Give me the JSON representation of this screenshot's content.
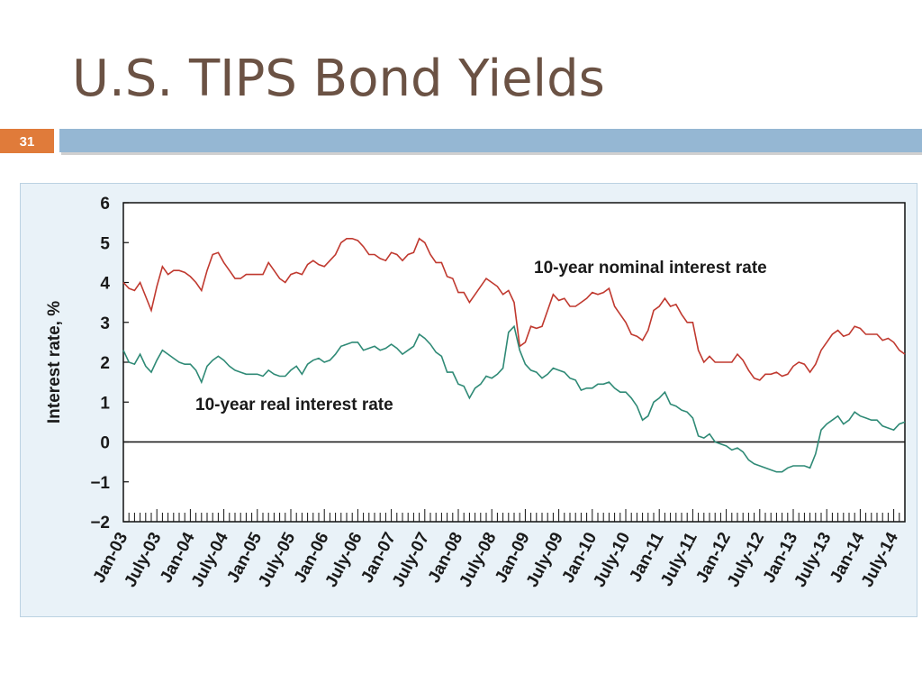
{
  "slide": {
    "title": "U.S. TIPS Bond Yields",
    "number": "31"
  },
  "chart_data": {
    "type": "line",
    "y_label": "Interest rate, %",
    "annotations": [
      "10-year nominal interest rate",
      "10-year real interest rate"
    ],
    "categories": [
      "Jan-03",
      null,
      null,
      null,
      null,
      null,
      "July-03",
      null,
      null,
      null,
      null,
      null,
      "Jan-04",
      null,
      null,
      null,
      null,
      null,
      "July-04",
      null,
      null,
      null,
      null,
      null,
      "Jan-05",
      null,
      null,
      null,
      null,
      null,
      "July-05",
      null,
      null,
      null,
      null,
      null,
      "Jan-06",
      null,
      null,
      null,
      null,
      null,
      "July-06",
      null,
      null,
      null,
      null,
      null,
      "Jan-07",
      null,
      null,
      null,
      null,
      null,
      "July-07",
      null,
      null,
      null,
      null,
      null,
      "Jan-08",
      null,
      null,
      null,
      null,
      null,
      "July-08",
      null,
      null,
      null,
      null,
      null,
      "Jan-09",
      null,
      null,
      null,
      null,
      null,
      "July-09",
      null,
      null,
      null,
      null,
      null,
      "Jan-10",
      null,
      null,
      null,
      null,
      null,
      "July-10",
      null,
      null,
      null,
      null,
      null,
      "Jan-11",
      null,
      null,
      null,
      null,
      null,
      "July-11",
      null,
      null,
      null,
      null,
      null,
      "Jan-12",
      null,
      null,
      null,
      null,
      null,
      "July-12",
      null,
      null,
      null,
      null,
      null,
      "Jan-13",
      null,
      null,
      null,
      null,
      null,
      "July-13",
      null,
      null,
      null,
      null,
      null,
      "Jan-14",
      null,
      null,
      null,
      null,
      null,
      "July-14",
      null,
      null
    ],
    "series": [
      {
        "color": "#c0392f",
        "values": [
          4.0,
          3.85,
          3.8,
          4.0,
          3.65,
          3.3,
          3.9,
          4.4,
          4.2,
          4.3,
          4.3,
          4.25,
          4.15,
          4.0,
          3.8,
          4.3,
          4.7,
          4.75,
          4.5,
          4.3,
          4.1,
          4.1,
          4.2,
          4.2,
          4.2,
          4.2,
          4.5,
          4.3,
          4.1,
          4.0,
          4.2,
          4.25,
          4.2,
          4.45,
          4.55,
          4.45,
          4.4,
          4.55,
          4.7,
          5.0,
          5.1,
          5.1,
          5.05,
          4.9,
          4.7,
          4.7,
          4.6,
          4.55,
          4.75,
          4.7,
          4.55,
          4.7,
          4.75,
          5.1,
          5.0,
          4.7,
          4.5,
          4.5,
          4.15,
          4.1,
          3.75,
          3.75,
          3.5,
          3.7,
          3.9,
          4.1,
          4.0,
          3.9,
          3.7,
          3.8,
          3.5,
          2.4,
          2.5,
          2.9,
          2.85,
          2.9,
          3.3,
          3.7,
          3.55,
          3.6,
          3.4,
          3.4,
          3.5,
          3.6,
          3.75,
          3.7,
          3.75,
          3.85,
          3.4,
          3.2,
          3.0,
          2.7,
          2.65,
          2.55,
          2.8,
          3.3,
          3.4,
          3.6,
          3.4,
          3.45,
          3.2,
          3.0,
          3.0,
          2.3,
          2.0,
          2.15,
          2.0,
          2.0,
          2.0,
          2.0,
          2.2,
          2.05,
          1.8,
          1.6,
          1.55,
          1.7,
          1.7,
          1.75,
          1.65,
          1.7,
          1.9,
          2.0,
          1.95,
          1.75,
          1.95,
          2.3,
          2.5,
          2.7,
          2.8,
          2.65,
          2.7,
          2.9,
          2.85,
          2.7,
          2.7,
          2.7,
          2.55,
          2.6,
          2.5,
          2.3,
          2.2
        ]
      },
      {
        "color": "#2f8a76",
        "values": [
          2.3,
          2.0,
          1.95,
          2.2,
          1.9,
          1.75,
          2.05,
          2.3,
          2.2,
          2.1,
          2.0,
          1.95,
          1.95,
          1.8,
          1.5,
          1.9,
          2.05,
          2.15,
          2.05,
          1.9,
          1.8,
          1.75,
          1.7,
          1.7,
          1.7,
          1.65,
          1.8,
          1.7,
          1.65,
          1.65,
          1.8,
          1.9,
          1.7,
          1.95,
          2.05,
          2.1,
          2.0,
          2.05,
          2.2,
          2.4,
          2.45,
          2.5,
          2.5,
          2.3,
          2.35,
          2.4,
          2.3,
          2.35,
          2.45,
          2.35,
          2.2,
          2.3,
          2.4,
          2.7,
          2.6,
          2.45,
          2.25,
          2.15,
          1.75,
          1.75,
          1.45,
          1.4,
          1.1,
          1.35,
          1.45,
          1.65,
          1.6,
          1.7,
          1.85,
          2.75,
          2.9,
          2.3,
          1.95,
          1.8,
          1.75,
          1.6,
          1.7,
          1.85,
          1.8,
          1.75,
          1.6,
          1.55,
          1.3,
          1.35,
          1.35,
          1.45,
          1.45,
          1.5,
          1.35,
          1.25,
          1.25,
          1.1,
          0.9,
          0.55,
          0.65,
          1.0,
          1.1,
          1.25,
          0.95,
          0.9,
          0.8,
          0.75,
          0.6,
          0.15,
          0.1,
          0.2,
          0.0,
          -0.05,
          -0.1,
          -0.2,
          -0.15,
          -0.25,
          -0.45,
          -0.55,
          -0.6,
          -0.65,
          -0.7,
          -0.75,
          -0.75,
          -0.65,
          -0.6,
          -0.6,
          -0.6,
          -0.65,
          -0.3,
          0.3,
          0.45,
          0.55,
          0.65,
          0.45,
          0.55,
          0.75,
          0.65,
          0.6,
          0.55,
          0.55,
          0.4,
          0.35,
          0.3,
          0.45,
          0.5
        ]
      }
    ],
    "ylim": [
      -2,
      6
    ],
    "yticks": [
      {
        "value": -2,
        "label": "−2"
      },
      {
        "value": -1,
        "label": "−1"
      },
      0,
      1,
      2,
      3,
      4,
      5,
      6
    ]
  }
}
